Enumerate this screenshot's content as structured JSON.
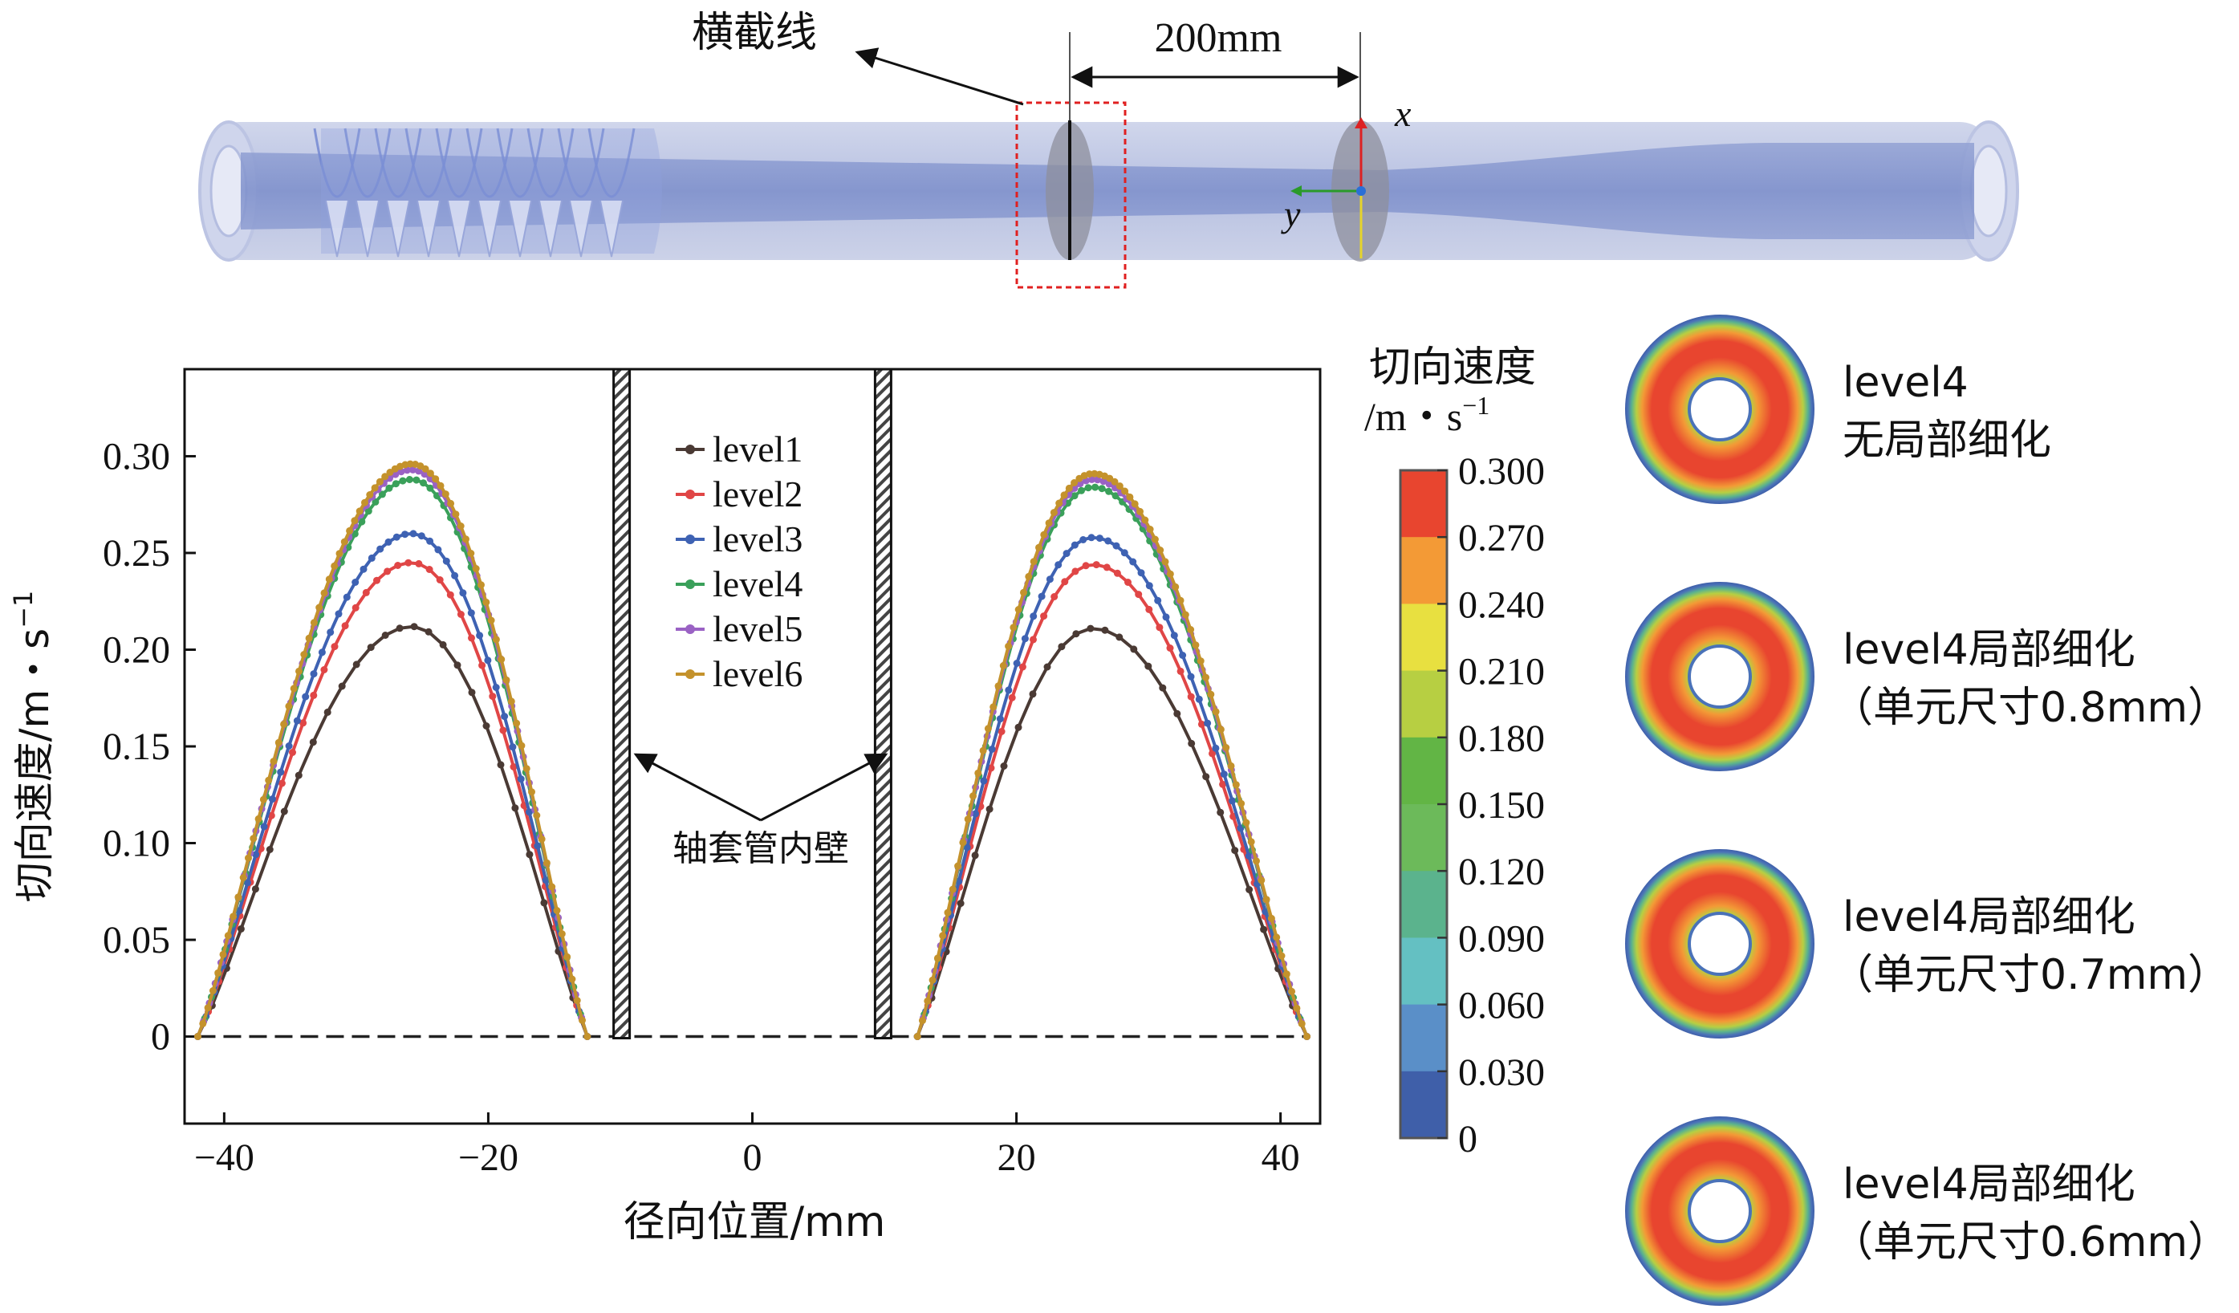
{
  "figure": {
    "pipe": {
      "section_label": "横截线",
      "dimension_label": "200mm",
      "axis_x_label": "x",
      "axis_y_label": "y"
    },
    "colorbar": {
      "title_line1": "切向速度",
      "title_line2": "/m・s",
      "title_sup": "−1",
      "ticks": [
        "0.300",
        "0.270",
        "0.240",
        "0.210",
        "0.180",
        "0.150",
        "0.120",
        "0.090",
        "0.060",
        "0.030",
        "0"
      ],
      "colors": [
        "#e8452f",
        "#f39a36",
        "#e8e040",
        "#b7cf42",
        "#62b545",
        "#6cba5a",
        "#5bb38d",
        "#64c0c2",
        "#5a8fc8",
        "#3f5fa9"
      ]
    },
    "contours": [
      {
        "line1": "level4",
        "line2": "无局部细化"
      },
      {
        "line1": "level4局部细化",
        "line2": "（单元尺寸0.8mm）"
      },
      {
        "line1": "level4局部细化",
        "line2": "（单元尺寸0.7mm）"
      },
      {
        "line1": "level4局部细化",
        "line2": "（单元尺寸0.6mm）"
      }
    ]
  },
  "chart_data": {
    "type": "line",
    "xlabel": "径向位置/mm",
    "ylabel": "切向速度/m・s",
    "ylabel_sup": "−1",
    "xlim": [
      -43,
      43
    ],
    "ylim": [
      -0.045,
      0.345
    ],
    "x_ticks": [
      -40,
      -20,
      0,
      20,
      40
    ],
    "x_tick_labels": [
      "−40",
      "−20",
      "0",
      "20",
      "40"
    ],
    "y_ticks": [
      0,
      0.05,
      0.1,
      0.15,
      0.2,
      0.25,
      0.3
    ],
    "y_tick_labels": [
      "0",
      "0.05",
      "0.10",
      "0.15",
      "0.20",
      "0.25",
      "0.30"
    ],
    "legend_position": "top-center",
    "wall_annotation": "轴套管内壁",
    "walls_x": [
      -9.9,
      9.9
    ],
    "zero_line": true,
    "series": [
      {
        "name": "level1",
        "color": "#4a3a34",
        "left_peak": 0.212,
        "right_peak": 0.211,
        "points": 27
      },
      {
        "name": "level2",
        "color": "#e04646",
        "left_peak": 0.245,
        "right_peak": 0.244,
        "points": 37
      },
      {
        "name": "level3",
        "color": "#3e62b3",
        "left_peak": 0.26,
        "right_peak": 0.258,
        "points": 47
      },
      {
        "name": "level4",
        "color": "#3aa05a",
        "left_peak": 0.288,
        "right_peak": 0.284,
        "points": 57
      },
      {
        "name": "level5",
        "color": "#9a62c4",
        "left_peak": 0.293,
        "right_peak": 0.288,
        "points": 67
      },
      {
        "name": "level6",
        "color": "#c4922c",
        "left_peak": 0.296,
        "right_peak": 0.291,
        "points": 77
      }
    ],
    "profile": {
      "left_range": [
        -42,
        -12.5
      ],
      "right_range": [
        12.5,
        42
      ],
      "left_peak_x": -25.8,
      "right_peak_x": 25.8
    }
  }
}
